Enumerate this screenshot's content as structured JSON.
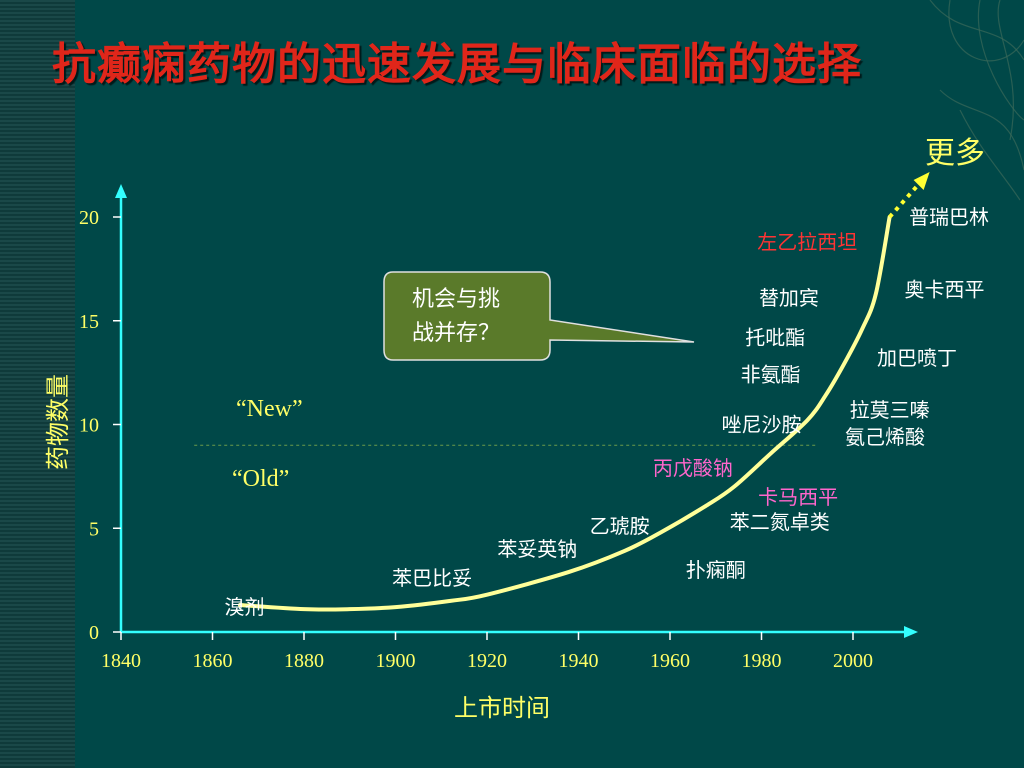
{
  "slide": {
    "title": "抗癫痫药物的迅速发展与临床面临的选择",
    "more_label": "更多"
  },
  "chart_data": {
    "type": "line",
    "title": "抗癫痫药物的迅速发展与临床面临的选择",
    "xlabel": "上市时间",
    "ylabel": "药物数量",
    "xlim": [
      1840,
      2010
    ],
    "ylim": [
      0,
      21
    ],
    "xticks": [
      1840,
      1860,
      1880,
      1900,
      1920,
      1940,
      1960,
      1980,
      2000
    ],
    "yticks": [
      0,
      5,
      10,
      15,
      20
    ],
    "grid": false,
    "series": [
      {
        "x": [
          1866,
          1880,
          1890,
          1900,
          1912,
          1920,
          1938,
          1950,
          1958,
          1968,
          1974,
          1982,
          1990,
          1994,
          1998,
          2002,
          2005,
          2008
        ],
        "y": [
          1.3,
          1.1,
          1.1,
          1.2,
          1.5,
          1.8,
          2.9,
          3.9,
          4.8,
          6.1,
          7.0,
          8.6,
          10.2,
          11.4,
          12.9,
          14.6,
          16.3,
          20
        ]
      }
    ],
    "dashed_divider_y": 9,
    "drug_labels": [
      {
        "text": "溴剂",
        "x": 1867,
        "y": 1.2,
        "color": "#ffffff"
      },
      {
        "text": "苯巴比妥",
        "x": 1908,
        "y": 2.6,
        "color": "#ffffff"
      },
      {
        "text": "苯妥英钠",
        "x": 1931,
        "y": 4.0,
        "color": "#ffffff"
      },
      {
        "text": "乙琥胺",
        "x": 1949,
        "y": 5.1,
        "color": "#ffffff"
      },
      {
        "text": "扑痫酮",
        "x": 1970,
        "y": 3.0,
        "color": "#ffffff"
      },
      {
        "text": "丙戊酸钠",
        "x": 1965,
        "y": 7.9,
        "color": "#ff66cc"
      },
      {
        "text": "苯二氮卓类",
        "x": 1984,
        "y": 5.3,
        "color": "#ffffff"
      },
      {
        "text": "卡马西平",
        "x": 1988,
        "y": 6.5,
        "color": "#ff66cc"
      },
      {
        "text": "唑尼沙胺",
        "x": 1980,
        "y": 10.0,
        "color": "#ffffff"
      },
      {
        "text": "非氨酯",
        "x": 1982,
        "y": 12.4,
        "color": "#ffffff"
      },
      {
        "text": "托吡酯",
        "x": 1983,
        "y": 14.2,
        "color": "#ffffff"
      },
      {
        "text": "替加宾",
        "x": 1986,
        "y": 16.1,
        "color": "#ffffff"
      },
      {
        "text": "左乙拉西坦",
        "x": 1990,
        "y": 18.8,
        "color": "#ff3333"
      },
      {
        "text": "氨己烯酸",
        "x": 2007,
        "y": 9.4,
        "color": "#ffffff"
      },
      {
        "text": "拉莫三嗪",
        "x": 2008,
        "y": 10.7,
        "color": "#ffffff"
      },
      {
        "text": "加巴喷丁",
        "x": 2014,
        "y": 13.2,
        "color": "#ffffff"
      },
      {
        "text": "奥卡西平",
        "x": 2020,
        "y": 16.5,
        "color": "#ffffff"
      },
      {
        "text": "普瑞巴林",
        "x": 2021,
        "y": 20.0,
        "color": "#ffffff"
      }
    ],
    "annotations": {
      "new_label": "“New”",
      "old_label": "“Old”",
      "callout": [
        "机会与挑",
        "战并存？"
      ]
    }
  }
}
